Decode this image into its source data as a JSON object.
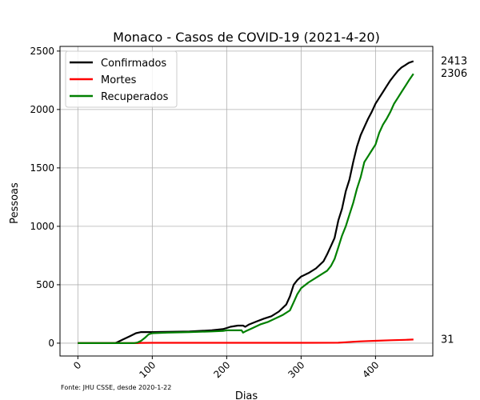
{
  "chart_data": {
    "type": "line",
    "title": "Monaco - Casos de COVID-19 (2021-4-20)",
    "xlabel": "Dias",
    "ylabel": "Pessoas",
    "xlim": [
      -24,
      477
    ],
    "ylim": [
      -110,
      2540
    ],
    "xticks": [
      0,
      100,
      200,
      300,
      400
    ],
    "yticks": [
      0,
      500,
      1000,
      1500,
      2000,
      2500
    ],
    "grid": true,
    "legend_position": "top-left",
    "footnote": "Fonte: JHU CSSE, desde 2020-1-22",
    "series": [
      {
        "name": "Confirmados",
        "color": "#000000",
        "end_label": "2413",
        "points": [
          [
            0,
            0
          ],
          [
            50,
            0
          ],
          [
            52,
            5
          ],
          [
            60,
            30
          ],
          [
            70,
            60
          ],
          [
            78,
            85
          ],
          [
            85,
            95
          ],
          [
            100,
            95
          ],
          [
            150,
            100
          ],
          [
            180,
            110
          ],
          [
            195,
            120
          ],
          [
            200,
            130
          ],
          [
            205,
            140
          ],
          [
            215,
            150
          ],
          [
            222,
            150
          ],
          [
            225,
            140
          ],
          [
            230,
            160
          ],
          [
            240,
            185
          ],
          [
            250,
            210
          ],
          [
            260,
            230
          ],
          [
            270,
            270
          ],
          [
            280,
            330
          ],
          [
            285,
            400
          ],
          [
            290,
            500
          ],
          [
            295,
            540
          ],
          [
            300,
            570
          ],
          [
            310,
            600
          ],
          [
            320,
            640
          ],
          [
            330,
            700
          ],
          [
            335,
            760
          ],
          [
            340,
            830
          ],
          [
            345,
            900
          ],
          [
            350,
            1050
          ],
          [
            355,
            1150
          ],
          [
            360,
            1300
          ],
          [
            365,
            1400
          ],
          [
            370,
            1550
          ],
          [
            375,
            1680
          ],
          [
            380,
            1780
          ],
          [
            385,
            1850
          ],
          [
            390,
            1920
          ],
          [
            395,
            1980
          ],
          [
            400,
            2050
          ],
          [
            405,
            2100
          ],
          [
            410,
            2150
          ],
          [
            415,
            2200
          ],
          [
            420,
            2250
          ],
          [
            425,
            2290
          ],
          [
            430,
            2330
          ],
          [
            435,
            2360
          ],
          [
            440,
            2380
          ],
          [
            445,
            2400
          ],
          [
            451,
            2413
          ]
        ]
      },
      {
        "name": "Mortes",
        "color": "#ff0000",
        "end_label": "31",
        "points": [
          [
            0,
            0
          ],
          [
            80,
            0
          ],
          [
            85,
            2
          ],
          [
            100,
            3
          ],
          [
            220,
            3
          ],
          [
            260,
            3
          ],
          [
            300,
            3
          ],
          [
            350,
            4
          ],
          [
            360,
            8
          ],
          [
            370,
            12
          ],
          [
            380,
            15
          ],
          [
            390,
            18
          ],
          [
            400,
            20
          ],
          [
            420,
            25
          ],
          [
            440,
            28
          ],
          [
            451,
            31
          ]
        ]
      },
      {
        "name": "Recuperados",
        "color": "#008000",
        "end_label": "2306",
        "points": [
          [
            0,
            0
          ],
          [
            75,
            0
          ],
          [
            80,
            5
          ],
          [
            85,
            20
          ],
          [
            90,
            45
          ],
          [
            95,
            75
          ],
          [
            100,
            85
          ],
          [
            120,
            90
          ],
          [
            150,
            95
          ],
          [
            180,
            100
          ],
          [
            195,
            105
          ],
          [
            200,
            110
          ],
          [
            220,
            110
          ],
          [
            222,
            90
          ],
          [
            225,
            100
          ],
          [
            235,
            130
          ],
          [
            245,
            160
          ],
          [
            255,
            180
          ],
          [
            265,
            210
          ],
          [
            275,
            240
          ],
          [
            285,
            280
          ],
          [
            290,
            350
          ],
          [
            295,
            420
          ],
          [
            300,
            470
          ],
          [
            310,
            520
          ],
          [
            320,
            560
          ],
          [
            330,
            600
          ],
          [
            335,
            620
          ],
          [
            340,
            660
          ],
          [
            345,
            720
          ],
          [
            350,
            820
          ],
          [
            355,
            920
          ],
          [
            360,
            1000
          ],
          [
            365,
            1100
          ],
          [
            370,
            1200
          ],
          [
            375,
            1320
          ],
          [
            380,
            1420
          ],
          [
            385,
            1550
          ],
          [
            390,
            1600
          ],
          [
            395,
            1650
          ],
          [
            400,
            1700
          ],
          [
            405,
            1800
          ],
          [
            410,
            1870
          ],
          [
            415,
            1920
          ],
          [
            420,
            1980
          ],
          [
            425,
            2050
          ],
          [
            430,
            2100
          ],
          [
            435,
            2150
          ],
          [
            440,
            2200
          ],
          [
            445,
            2250
          ],
          [
            451,
            2306
          ]
        ]
      }
    ]
  }
}
